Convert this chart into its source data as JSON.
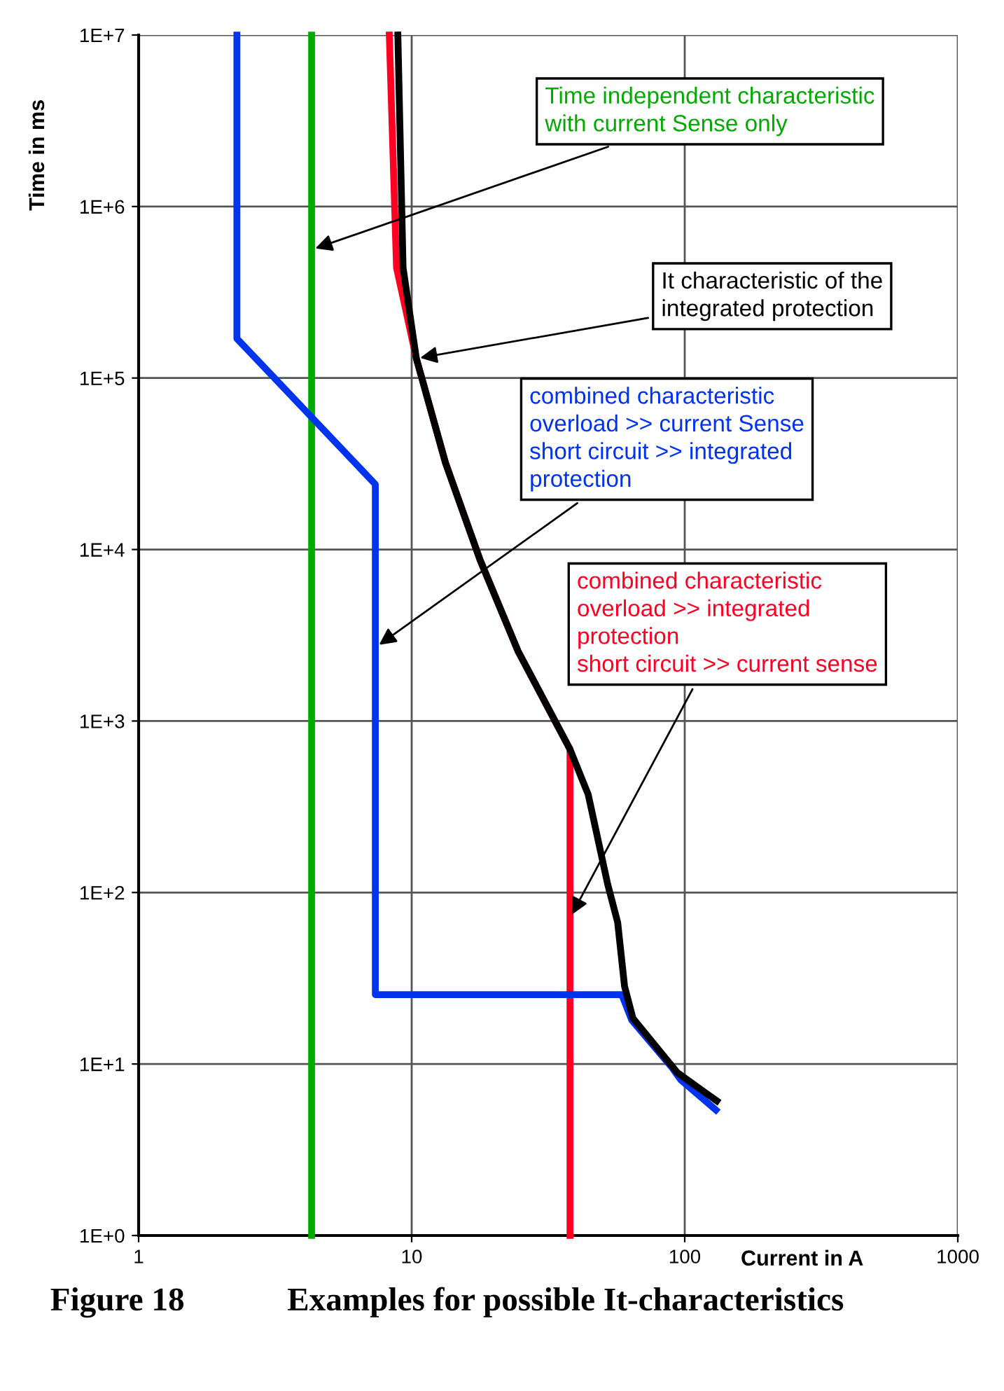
{
  "chart_data": {
    "type": "line",
    "title": "Figure 18",
    "subtitle": "Examples for possible It-characteristics",
    "xlabel": "Current in A",
    "ylabel": "Time in ms",
    "log": "xy",
    "xlim": [
      1,
      1000
    ],
    "xticks": [
      1,
      10,
      100,
      1000
    ],
    "ylim": [
      1,
      10000000
    ],
    "yticks": [
      {
        "value": 1,
        "label": "1E+0"
      },
      {
        "value": 10,
        "label": "1E+1"
      },
      {
        "value": 100,
        "label": "1E+2"
      },
      {
        "value": 1000,
        "label": "1E+3"
      },
      {
        "value": 10000,
        "label": "1E+4"
      },
      {
        "value": 100000,
        "label": "1E+5"
      },
      {
        "value": 1000000,
        "label": "1E+6"
      },
      {
        "value": 10000000,
        "label": "1E+7"
      }
    ],
    "grid": true,
    "legend": false,
    "marker": "none",
    "line_style": "solid",
    "series": [
      {
        "color": "#00aa00",
        "x": [
          4.3,
          4.3
        ],
        "values": [
          10000000,
          1
        ]
      },
      {
        "color": "#000000",
        "x": [
          8.9,
          9.3,
          10.4,
          13.3,
          17.8,
          24.5,
          38,
          44.3,
          52.2,
          56.8,
          60.2,
          64.6,
          94,
          131
        ],
        "values": [
          10000000,
          440000,
          130000,
          32000,
          8700,
          2560,
          684,
          373,
          112,
          67,
          28.4,
          18.5,
          8.9,
          6.1
        ]
      },
      {
        "color": "#0033ee",
        "x": [
          2.29,
          2.29,
          7.36,
          7.36,
          58.8,
          64,
          90,
          96.6,
          130
        ],
        "values": [
          10000000,
          170000,
          24000,
          25.4,
          25.4,
          18,
          9.5,
          8.1,
          5.4
        ]
      },
      {
        "color": "#ff0022",
        "x": [
          8.28,
          8.8,
          10.4,
          13.3,
          17.8,
          24.5,
          38,
          38
        ],
        "values": [
          10000000,
          440000,
          130000,
          32000,
          8700,
          2560,
          684,
          1
        ]
      }
    ],
    "annotations": [
      {
        "text": "Time independent characteristic\nwith current Sense only",
        "x": 4.3,
        "y": 560000
      },
      {
        "text": "It characteristic of the\nintegrated protection",
        "x": 10.4,
        "y": 130000
      },
      {
        "text": "combined characteristic\noverload >> current Sense\nshort circuit >> integrated\nprotection",
        "x": 7.4,
        "y": 2700
      },
      {
        "text": "combined characteristic\noverload >> integrated\nprotection\nshort circuit >> current sense",
        "x": 38,
        "y": 71
      }
    ]
  }
}
